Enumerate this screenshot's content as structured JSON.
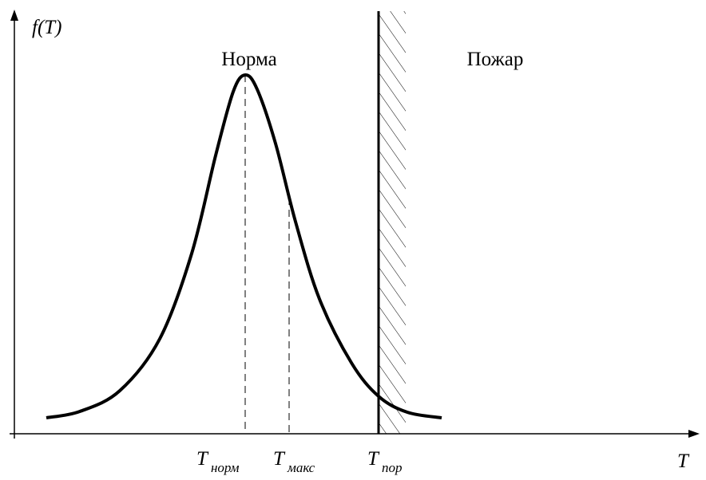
{
  "axes": {
    "y_label": "f(T)",
    "x_label": "T"
  },
  "regions": {
    "normal": "Норма",
    "fire": "Пожар"
  },
  "markers": [
    {
      "symbol": "T",
      "subscript": "норм"
    },
    {
      "symbol": "T",
      "subscript": "макс"
    },
    {
      "symbol": "T",
      "subscript": "пор"
    }
  ]
}
